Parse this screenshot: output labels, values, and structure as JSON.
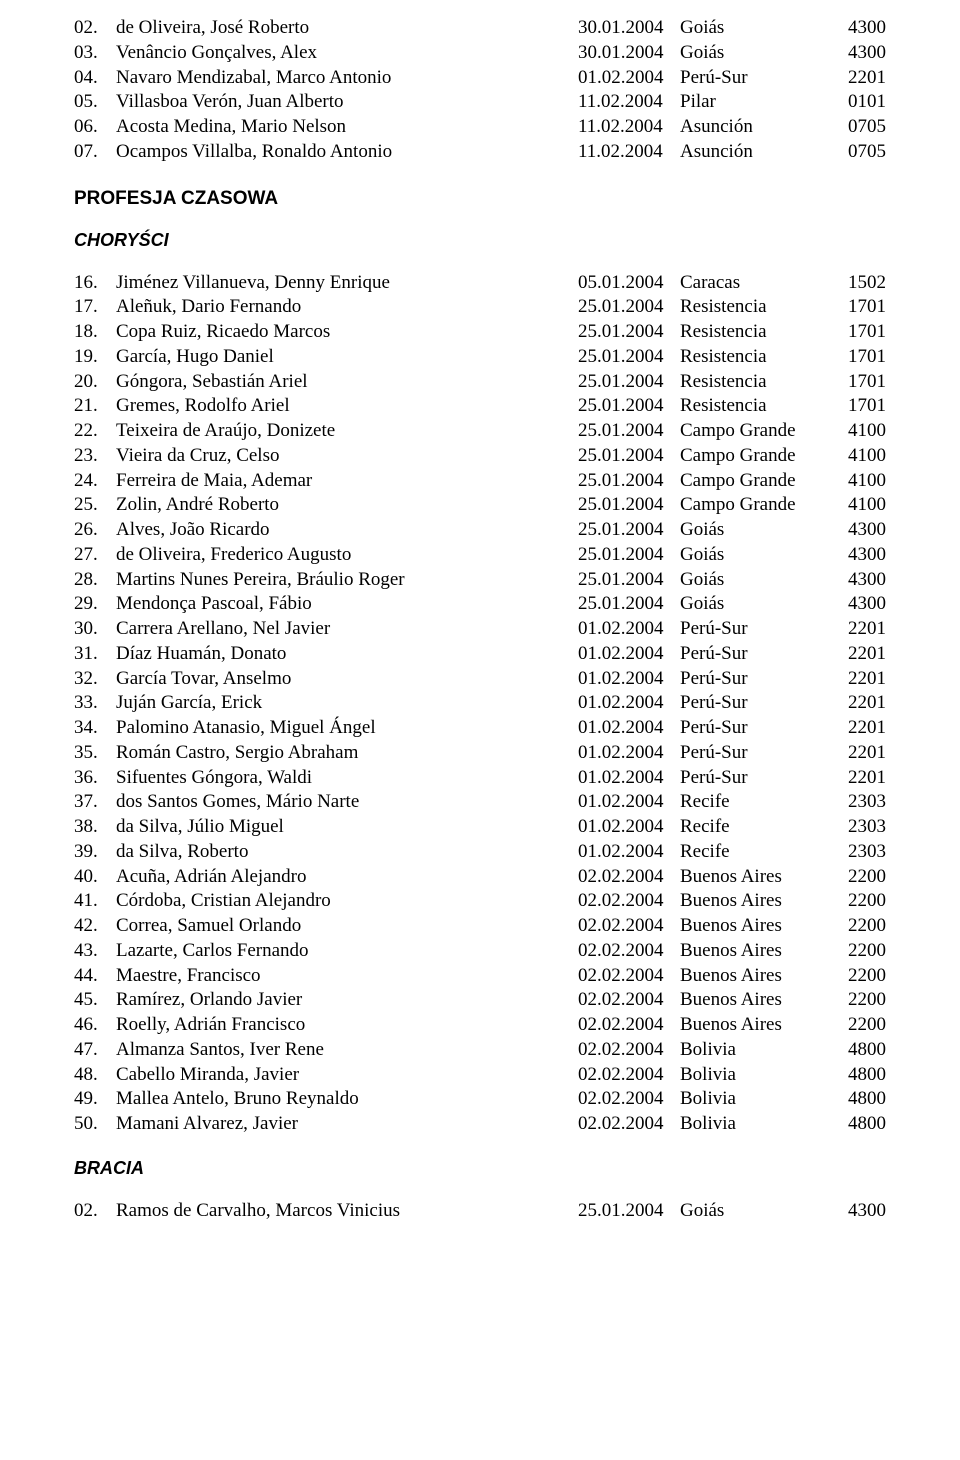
{
  "text_color": "#000000",
  "background_color": "#ffffff",
  "body_font": "Times New Roman",
  "heading_font": "Arial",
  "body_fontsize_pt": 14,
  "heading_fontsize_pt": 14,
  "top_rows": [
    {
      "num": "02.",
      "name": "de Oliveira, José Roberto",
      "date": "30.01.2004",
      "loc": "Goiás",
      "code": "4300"
    },
    {
      "num": "03.",
      "name": "Venâncio Gonçalves, Alex",
      "date": "30.01.2004",
      "loc": "Goiás",
      "code": "4300"
    },
    {
      "num": "04.",
      "name": "Navaro Mendizabal, Marco Antonio",
      "date": "01.02.2004",
      "loc": "Perú-Sur",
      "code": "2201"
    },
    {
      "num": "05.",
      "name": "Villasboa Verón, Juan Alberto",
      "date": "11.02.2004",
      "loc": "Pilar",
      "code": "0101"
    },
    {
      "num": "06.",
      "name": "Acosta Medina, Mario Nelson",
      "date": "11.02.2004",
      "loc": "Asunción",
      "code": "0705"
    },
    {
      "num": "07.",
      "name": "Ocampos Villalba, Ronaldo Antonio",
      "date": "11.02.2004",
      "loc": "Asunción",
      "code": "0705"
    }
  ],
  "section_heading": "PROFESJA CZASOWA",
  "sub_heading_1": "CHORYŚCI",
  "main_rows": [
    {
      "num": "16.",
      "name": "Jiménez Villanueva, Denny Enrique",
      "date": "05.01.2004",
      "loc": "Caracas",
      "code": "1502"
    },
    {
      "num": "17.",
      "name": "Aleñuk, Dario Fernando",
      "date": "25.01.2004",
      "loc": "Resistencia",
      "code": "1701"
    },
    {
      "num": "18.",
      "name": "Copa Ruiz, Ricaedo Marcos",
      "date": "25.01.2004",
      "loc": "Resistencia",
      "code": "1701"
    },
    {
      "num": "19.",
      "name": "García, Hugo Daniel",
      "date": "25.01.2004",
      "loc": "Resistencia",
      "code": "1701"
    },
    {
      "num": "20.",
      "name": "Góngora, Sebastián Ariel",
      "date": "25.01.2004",
      "loc": "Resistencia",
      "code": "1701"
    },
    {
      "num": "21.",
      "name": "Gremes, Rodolfo Ariel",
      "date": "25.01.2004",
      "loc": "Resistencia",
      "code": "1701"
    },
    {
      "num": "22.",
      "name": "Teixeira de Araújo, Donizete",
      "date": "25.01.2004",
      "loc": "Campo Grande",
      "code": "4100"
    },
    {
      "num": "23.",
      "name": "Vieira da Cruz, Celso",
      "date": "25.01.2004",
      "loc": "Campo Grande",
      "code": "4100"
    },
    {
      "num": "24.",
      "name": "Ferreira de Maia, Ademar",
      "date": "25.01.2004",
      "loc": "Campo Grande",
      "code": "4100"
    },
    {
      "num": "25.",
      "name": "Zolin, André Roberto",
      "date": "25.01.2004",
      "loc": "Campo Grande",
      "code": "4100"
    },
    {
      "num": "26.",
      "name": "Alves, João Ricardo",
      "date": "25.01.2004",
      "loc": "Goiás",
      "code": "4300"
    },
    {
      "num": "27.",
      "name": "de Oliveira, Frederico Augusto",
      "date": "25.01.2004",
      "loc": "Goiás",
      "code": "4300"
    },
    {
      "num": "28.",
      "name": "Martins Nunes Pereira, Bráulio Roger",
      "date": "25.01.2004",
      "loc": "Goiás",
      "code": "4300"
    },
    {
      "num": "29.",
      "name": "Mendonça Pascoal, Fábio",
      "date": "25.01.2004",
      "loc": "Goiás",
      "code": "4300"
    },
    {
      "num": "30.",
      "name": "Carrera Arellano, Nel Javier",
      "date": "01.02.2004",
      "loc": "Perú-Sur",
      "code": "2201"
    },
    {
      "num": "31.",
      "name": "Díaz Huamán, Donato",
      "date": "01.02.2004",
      "loc": "Perú-Sur",
      "code": "2201"
    },
    {
      "num": "32.",
      "name": "García Tovar, Anselmo",
      "date": "01.02.2004",
      "loc": "Perú-Sur",
      "code": "2201"
    },
    {
      "num": "33.",
      "name": "Juján García, Erick",
      "date": "01.02.2004",
      "loc": "Perú-Sur",
      "code": "2201"
    },
    {
      "num": "34.",
      "name": "Palomino Atanasio, Miguel Ángel",
      "date": "01.02.2004",
      "loc": "Perú-Sur",
      "code": "2201"
    },
    {
      "num": "35.",
      "name": "Román Castro, Sergio Abraham",
      "date": "01.02.2004",
      "loc": "Perú-Sur",
      "code": "2201"
    },
    {
      "num": "36.",
      "name": "Sifuentes Góngora, Waldi",
      "date": "01.02.2004",
      "loc": "Perú-Sur",
      "code": "2201"
    },
    {
      "num": "37.",
      "name": "dos Santos Gomes, Mário Narte",
      "date": "01.02.2004",
      "loc": "Recife",
      "code": "2303"
    },
    {
      "num": "38.",
      "name": "da Silva, Júlio Miguel",
      "date": "01.02.2004",
      "loc": "Recife",
      "code": "2303"
    },
    {
      "num": "39.",
      "name": "da Silva, Roberto",
      "date": "01.02.2004",
      "loc": "Recife",
      "code": "2303"
    },
    {
      "num": "40.",
      "name": "Acuña, Adrián Alejandro",
      "date": "02.02.2004",
      "loc": "Buenos Aires",
      "code": "2200"
    },
    {
      "num": "41.",
      "name": "Córdoba, Cristian Alejandro",
      "date": "02.02.2004",
      "loc": "Buenos Aires",
      "code": "2200"
    },
    {
      "num": "42.",
      "name": "Correa, Samuel Orlando",
      "date": "02.02.2004",
      "loc": "Buenos Aires",
      "code": "2200"
    },
    {
      "num": "43.",
      "name": "Lazarte, Carlos Fernando",
      "date": "02.02.2004",
      "loc": "Buenos Aires",
      "code": "2200"
    },
    {
      "num": "44.",
      "name": "Maestre, Francisco",
      "date": "02.02.2004",
      "loc": "Buenos Aires",
      "code": "2200"
    },
    {
      "num": "45.",
      "name": "Ramírez, Orlando Javier",
      "date": "02.02.2004",
      "loc": "Buenos Aires",
      "code": "2200"
    },
    {
      "num": "46.",
      "name": "Roelly, Adrián Francisco",
      "date": "02.02.2004",
      "loc": "Buenos Aires",
      "code": "2200"
    },
    {
      "num": "47.",
      "name": "Almanza Santos, Iver Rene",
      "date": "02.02.2004",
      "loc": "Bolivia",
      "code": "4800"
    },
    {
      "num": "48.",
      "name": "Cabello Miranda, Javier",
      "date": "02.02.2004",
      "loc": "Bolivia",
      "code": "4800"
    },
    {
      "num": "49.",
      "name": "Mallea Antelo, Bruno Reynaldo",
      "date": "02.02.2004",
      "loc": "Bolivia",
      "code": "4800"
    },
    {
      "num": "50.",
      "name": "Mamani Alvarez, Javier",
      "date": "02.02.2004",
      "loc": "Bolivia",
      "code": "4800"
    }
  ],
  "sub_heading_2": "BRACIA",
  "bottom_rows": [
    {
      "num": "02.",
      "name": "Ramos de Carvalho, Marcos Vinicius",
      "date": "25.01.2004",
      "loc": "Goiás",
      "code": "4300"
    }
  ]
}
